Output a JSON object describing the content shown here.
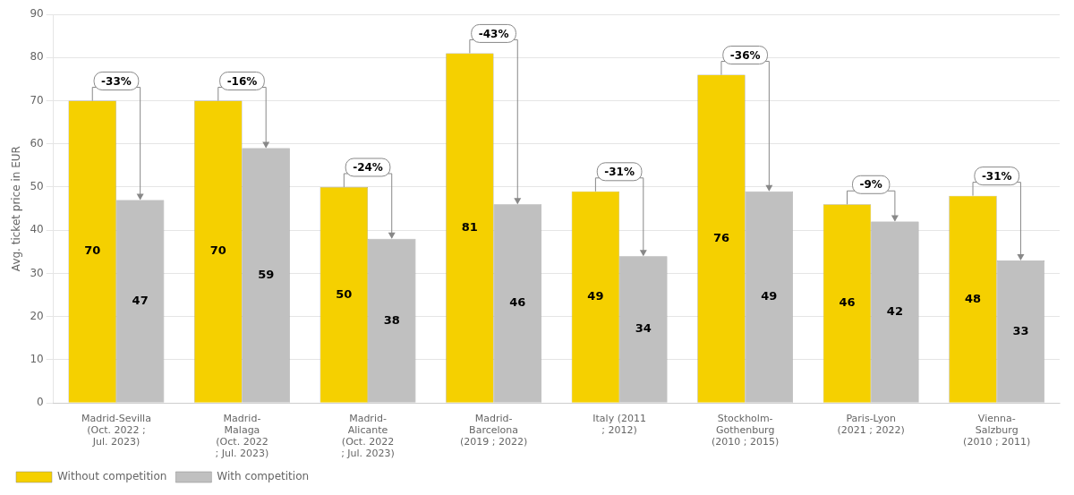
{
  "chart_data": {
    "type": "bar",
    "categories": [
      "Madrid-Sevilla\n(Oct. 2022 ;\nJul. 2023)",
      "Madrid-\nMalaga\n(Oct. 2022\n; Jul. 2023)",
      "Madrid-\nAlicante\n(Oct. 2022\n; Jul. 2023)",
      "Madrid-\nBarcelona\n(2019 ; 2022)",
      "Italy (2011\n; 2012)",
      "Stockholm-\nGothenburg\n(2010 ; 2015)",
      "Paris-Lyon\n(2021 ; 2022)",
      "Vienna-\nSalzburg\n(2010 ; 2011)"
    ],
    "series": [
      {
        "name": "Without competition",
        "color": "#F5D000",
        "values": [
          70,
          70,
          50,
          81,
          49,
          76,
          46,
          48
        ]
      },
      {
        "name": "With competition",
        "color": "#C0C0C0",
        "values": [
          47,
          59,
          38,
          46,
          34,
          49,
          42,
          33
        ]
      }
    ],
    "annotations": [
      "-33%",
      "-16%",
      "-24%",
      "-43%",
      "-31%",
      "-36%",
      "-9%",
      "-31%"
    ],
    "ylabel": "Avg. ticket price in EUR",
    "ylim": [
      0,
      90
    ],
    "yticks": [
      0,
      10,
      20,
      30,
      40,
      50,
      60,
      70,
      80,
      90
    ],
    "grid": true,
    "legend": "bottom",
    "data_labels": true
  }
}
